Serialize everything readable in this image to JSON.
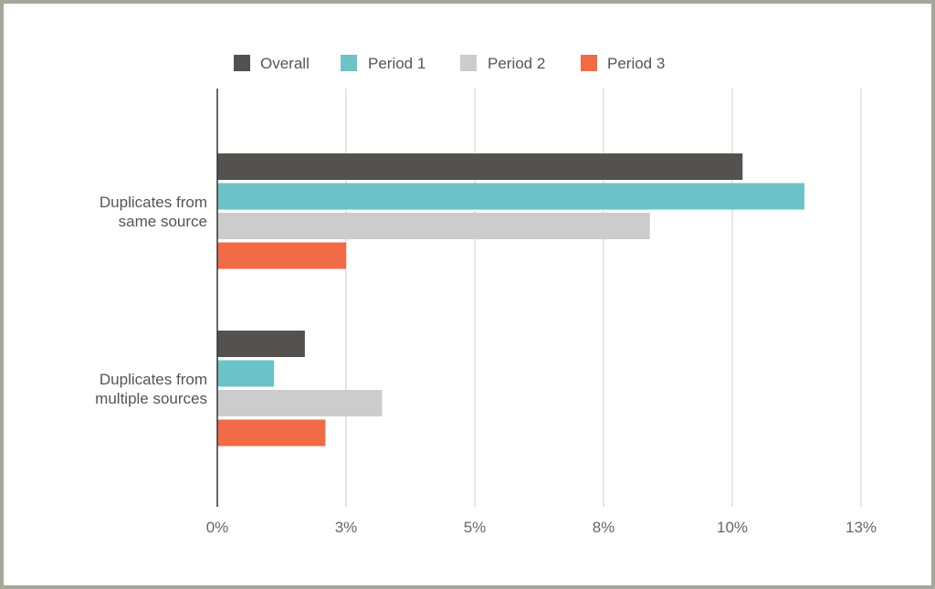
{
  "chart_data": {
    "type": "bar",
    "orientation": "horizontal",
    "categories": [
      [
        "Duplicates from",
        "same source"
      ],
      [
        "Duplicates from",
        "multiple sources"
      ]
    ],
    "series": [
      {
        "name": "Overall",
        "color": "#53524e",
        "values": [
          10.2,
          1.7
        ]
      },
      {
        "name": "Period 1",
        "color": "#6cc3c8",
        "values": [
          11.4,
          1.1
        ]
      },
      {
        "name": "Period 2",
        "color": "#cccccc",
        "values": [
          8.4,
          3.2
        ]
      },
      {
        "name": "Period 3",
        "color": "#f16b46",
        "values": [
          2.5,
          2.1
        ]
      }
    ],
    "x_ticks": [
      0,
      2.5,
      5,
      7.5,
      10,
      12.5
    ],
    "x_tick_labels": [
      "0%",
      "3%",
      "5%",
      "8%",
      "10%",
      "13%"
    ],
    "xlim": [
      0,
      12.5
    ],
    "grid": true,
    "legend_position": "top-center"
  }
}
